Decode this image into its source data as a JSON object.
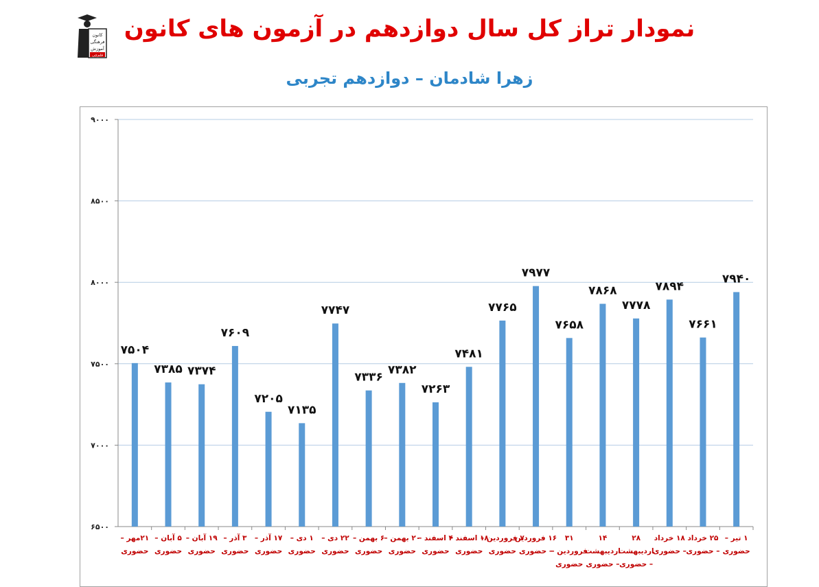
{
  "header": {
    "title": "نمودار تراز کل سال دوازدهم در آزمون های کانون",
    "subtitle": "زهرا شادمان – دوازدهم تجربی",
    "logo_lines": [
      "کانون",
      "فرهنگی",
      "آموزش",
      "قلم‌چی"
    ]
  },
  "colors": {
    "title": "#e00000",
    "subtitle": "#2e86c8",
    "bar": "#5b9bd5",
    "category_label": "#c00000",
    "grid": "#b4cce4"
  },
  "chart_data": {
    "type": "bar",
    "title": "",
    "xlabel": "",
    "ylabel": "",
    "ylim": [
      6500,
      9000
    ],
    "yticks": [
      6500,
      7000,
      7500,
      8000,
      8500,
      9000
    ],
    "ytick_labels": [
      "۶۵۰۰",
      "۷۰۰۰",
      "۷۵۰۰",
      "۸۰۰۰",
      "۸۵۰۰",
      "۹۰۰۰"
    ],
    "grid": true,
    "legend": "none",
    "categories": [
      [
        "۲۱مهر –",
        "حضوری"
      ],
      [
        "۵ آبان –",
        "حضوری"
      ],
      [
        "۱۹ آبان –",
        "حضوری"
      ],
      [
        "۳ آذر –",
        "حضوری"
      ],
      [
        "۱۷ آذر –",
        "حضوری"
      ],
      [
        "۱ دی –",
        "حضوری"
      ],
      [
        "۲۲ دی –",
        "حضوری"
      ],
      [
        "۶ بهمن –",
        "حضوری"
      ],
      [
        "۲۰ بهمن –",
        "حضوری"
      ],
      [
        "۴ اسفند –",
        "حضوری"
      ],
      [
        "۱۸ اسفند –",
        "حضوری"
      ],
      [
        "۷ فروردین –",
        "حضوری"
      ],
      [
        "۱۶ فروردین",
        "– حضوری"
      ],
      [
        "۳۱",
        "فروردین –",
        "حضوری"
      ],
      [
        "۱۴",
        "اردیبهشت",
        "– حضوری"
      ],
      [
        "۲۸",
        "اردیبهشت",
        "– حضوری"
      ],
      [
        "۱۸ خرداد",
        "– حضوری"
      ],
      [
        "۲۵ خرداد",
        "– حضوری"
      ],
      [
        "۱ تیر –",
        "حضوری"
      ]
    ],
    "values": [
      7504,
      7385,
      7374,
      7609,
      7205,
      7135,
      7747,
      7336,
      7382,
      7263,
      7481,
      7765,
      7977,
      7658,
      7868,
      7778,
      7894,
      7661,
      7940
    ],
    "value_labels": [
      "۷۵۰۴",
      "۷۳۸۵",
      "۷۳۷۴",
      "۷۶۰۹",
      "۷۲۰۵",
      "۷۱۳۵",
      "۷۷۴۷",
      "۷۳۳۶",
      "۷۳۸۲",
      "۷۲۶۳",
      "۷۴۸۱",
      "۷۷۶۵",
      "۷۹۷۷",
      "۷۶۵۸",
      "۷۸۶۸",
      "۷۷۷۸",
      "۷۸۹۴",
      "۷۶۶۱",
      "۷۹۴۰"
    ]
  }
}
